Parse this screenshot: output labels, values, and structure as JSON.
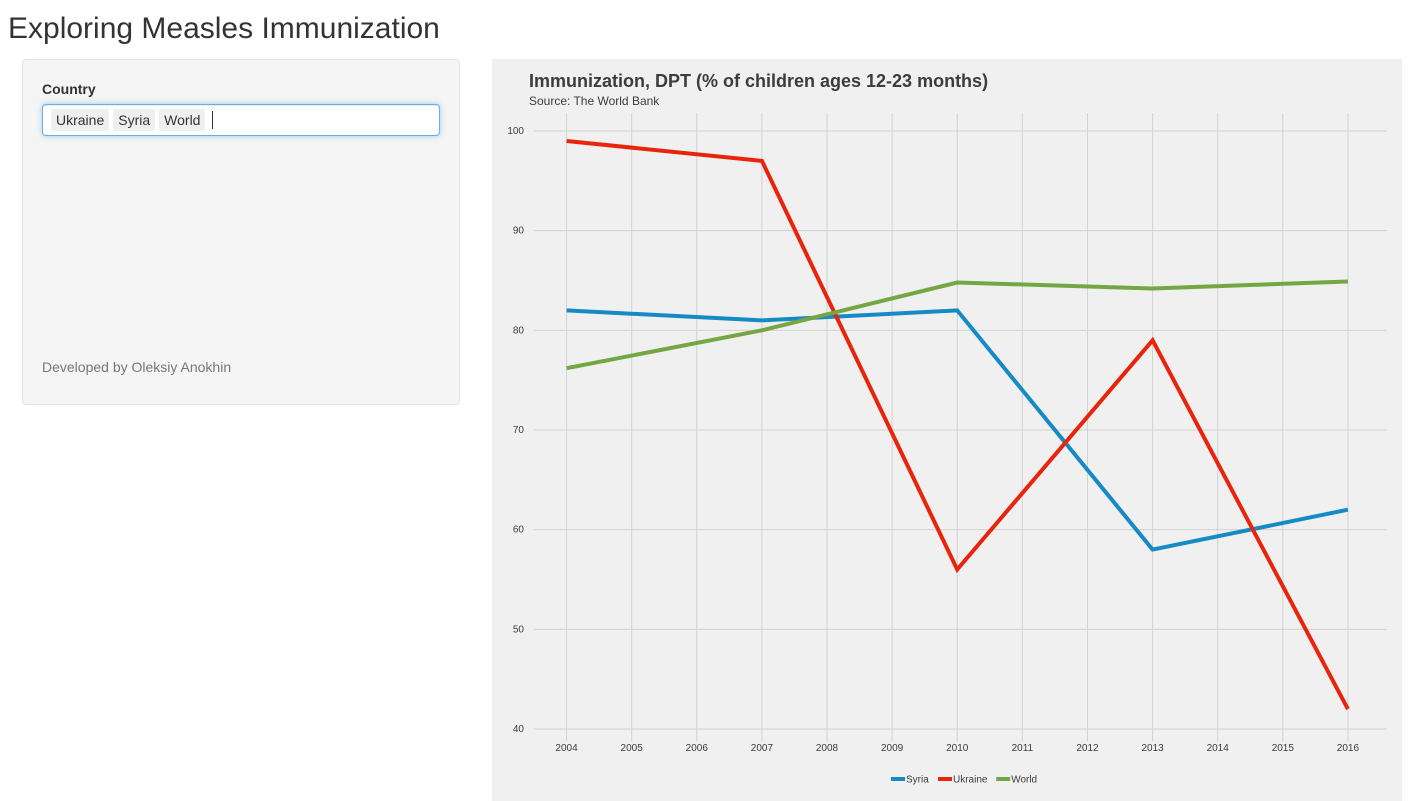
{
  "page": {
    "title": "Exploring Measles Immunization"
  },
  "sidebar": {
    "country_label": "Country",
    "selected_countries": [
      "Ukraine",
      "Syria",
      "World"
    ],
    "developer_credit": "Developed by Oleksiy Anokhin"
  },
  "chart_data": {
    "type": "line",
    "title": "Immunization, DPT (% of children ages 12-23 months)",
    "subtitle": "Source: The World Bank",
    "xlabel": "",
    "ylabel": "",
    "x": [
      2004,
      2005,
      2006,
      2007,
      2008,
      2009,
      2010,
      2011,
      2012,
      2013,
      2014,
      2015,
      2016
    ],
    "xlim": [
      2003.5,
      2016.6
    ],
    "ylim": [
      40,
      100
    ],
    "yticks": [
      40,
      50,
      60,
      70,
      80,
      90,
      100
    ],
    "grid": true,
    "legend_position": "bottom",
    "series": [
      {
        "name": "Syria",
        "color": "#168ac5",
        "points": [
          [
            2004,
            82
          ],
          [
            2007,
            81
          ],
          [
            2010,
            82
          ],
          [
            2013,
            58
          ],
          [
            2016,
            62
          ]
        ]
      },
      {
        "name": "Ukraine",
        "color": "#e8250c",
        "points": [
          [
            2004,
            99
          ],
          [
            2007,
            97
          ],
          [
            2010,
            56
          ],
          [
            2013,
            79
          ],
          [
            2016,
            42
          ]
        ]
      },
      {
        "name": "World",
        "color": "#74a743",
        "points": [
          [
            2004,
            76.2
          ],
          [
            2007,
            80
          ],
          [
            2010,
            84.8
          ],
          [
            2013,
            84.2
          ],
          [
            2016,
            84.9
          ]
        ]
      }
    ]
  }
}
